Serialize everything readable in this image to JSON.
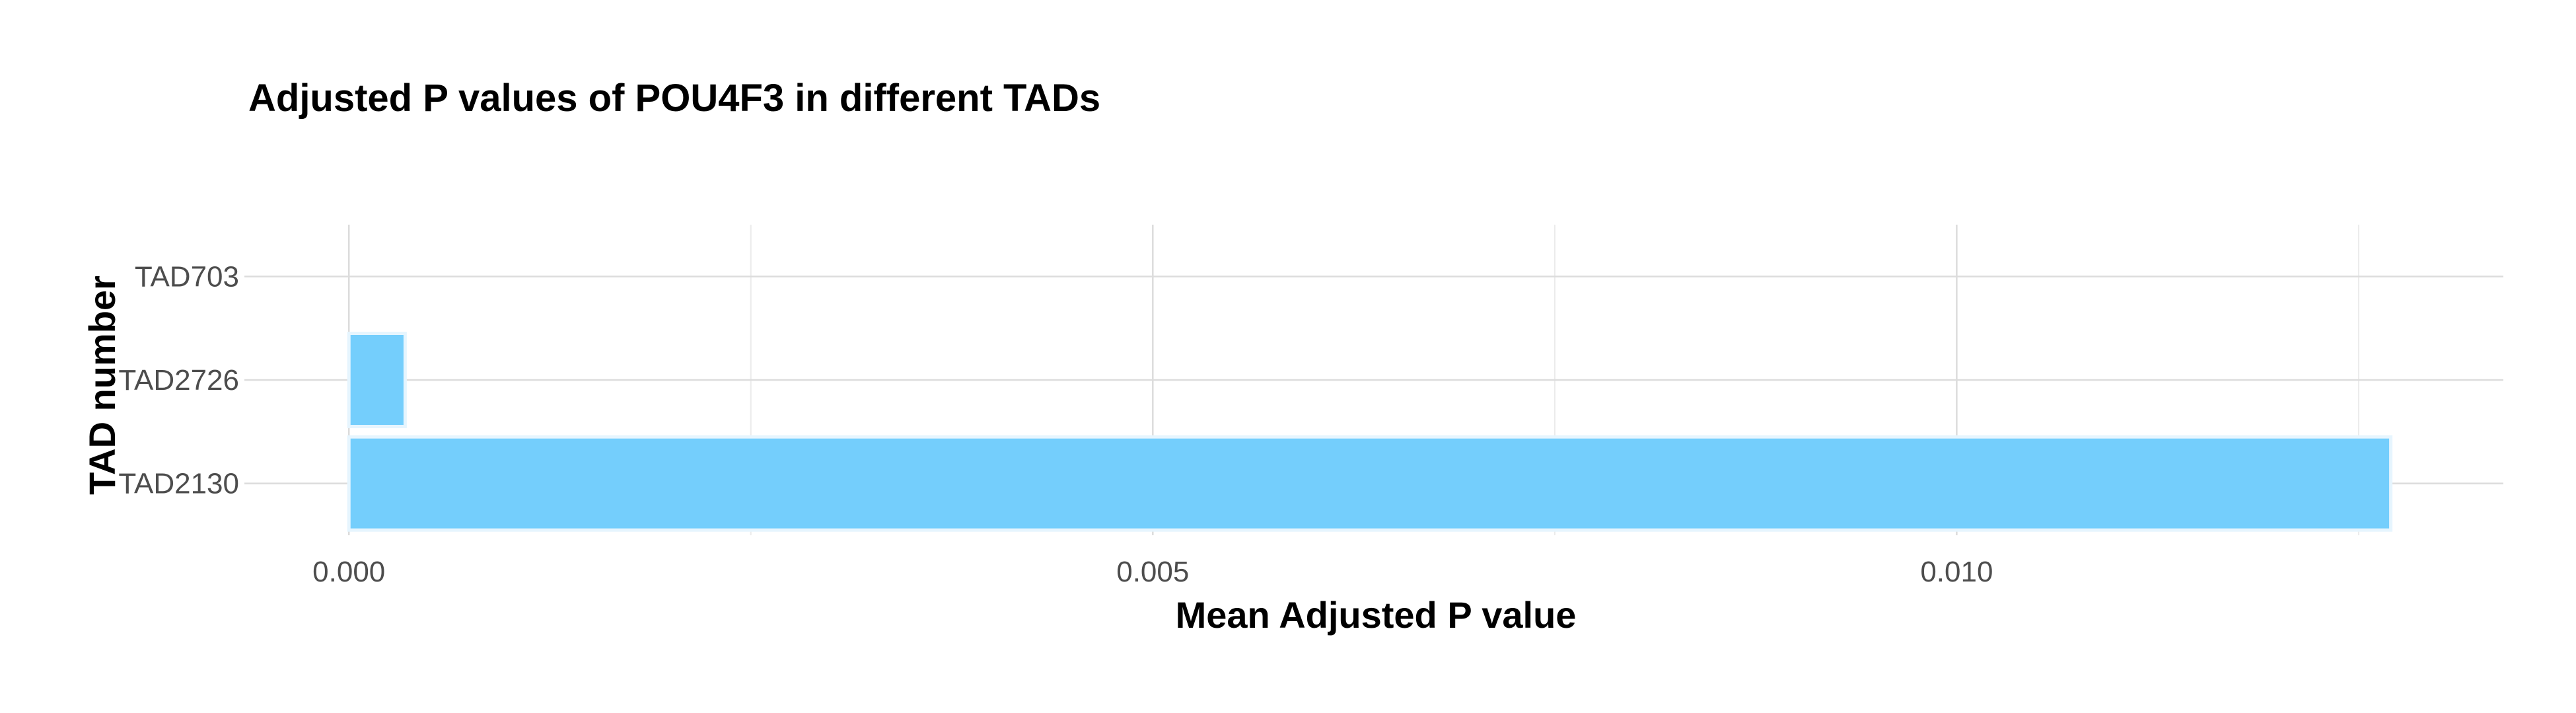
{
  "chart_data": {
    "type": "bar",
    "orientation": "horizontal",
    "title": "Adjusted P values of POU4F3 in different TADs",
    "xlabel": "Mean Adjusted P value",
    "ylabel": "TAD number",
    "categories": [
      "TAD703",
      "TAD2726",
      "TAD2130"
    ],
    "values": [
      0.0,
      0.00035,
      0.0127
    ],
    "x_ticks": [
      0.0,
      0.005,
      0.01
    ],
    "x_tick_labels": [
      "0.000",
      "0.005",
      "0.010"
    ],
    "xlim": [
      -0.00065,
      0.0134
    ],
    "grid": true,
    "legend": "none",
    "colors": {
      "bar_fill": "#74CEFC",
      "bar_stroke": "#E6F5FE",
      "grid_major": "#DCDCDC",
      "grid_minor": "#EBEBEB",
      "background": "#FFFFFF"
    }
  }
}
